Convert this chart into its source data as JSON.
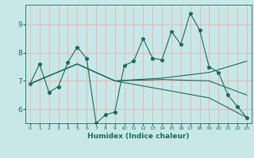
{
  "bg_color": "#c8e8e8",
  "line_color": "#1a6b5a",
  "grid_color": "#e8b8b8",
  "xlabel": "Humidex (Indice chaleur)",
  "xlim": [
    -0.5,
    23.5
  ],
  "ylim": [
    5.5,
    9.7
  ],
  "yticks": [
    6,
    7,
    8,
    9
  ],
  "xticks": [
    0,
    1,
    2,
    3,
    4,
    5,
    6,
    7,
    8,
    9,
    10,
    11,
    12,
    13,
    14,
    15,
    16,
    17,
    18,
    19,
    20,
    21,
    22,
    23
  ],
  "series0_x": [
    0,
    1,
    2,
    3,
    4,
    5,
    6,
    7,
    8,
    9,
    10,
    11,
    12,
    13,
    14,
    15,
    16,
    17,
    18,
    19,
    20,
    21,
    22,
    23
  ],
  "series0_y": [
    6.9,
    7.6,
    6.6,
    6.8,
    7.65,
    8.2,
    7.8,
    5.5,
    5.8,
    5.9,
    7.55,
    7.7,
    8.5,
    7.8,
    7.75,
    8.75,
    8.3,
    9.4,
    8.8,
    7.5,
    7.3,
    6.5,
    6.1,
    5.7
  ],
  "series1_x": [
    0,
    5,
    9,
    14,
    19,
    23
  ],
  "series1_y": [
    6.9,
    7.6,
    7.0,
    7.1,
    7.3,
    7.7
  ],
  "series2_x": [
    0,
    5,
    9,
    14,
    19,
    23
  ],
  "series2_y": [
    6.9,
    7.6,
    7.0,
    7.05,
    7.0,
    6.5
  ],
  "series3_x": [
    0,
    5,
    9,
    14,
    19,
    23
  ],
  "series3_y": [
    6.9,
    7.6,
    7.0,
    6.7,
    6.4,
    5.7
  ]
}
